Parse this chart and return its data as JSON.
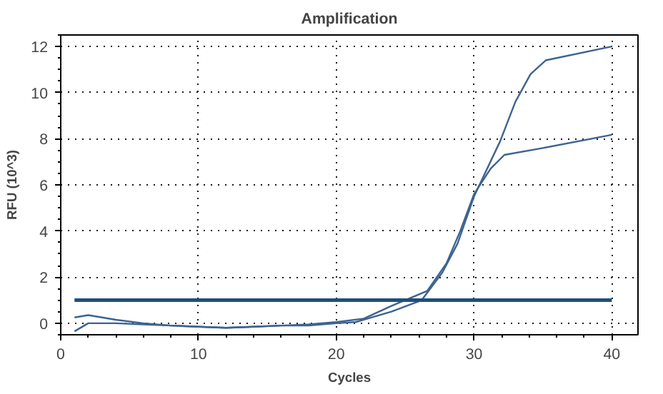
{
  "chart_data": {
    "type": "line",
    "title": "Amplification",
    "xlabel": "Cycles",
    "ylabel": "RFU (10^3)",
    "xlim": [
      0,
      41.9
    ],
    "ylim": [
      -0.5,
      12.5
    ],
    "xticks": [
      0,
      10,
      20,
      30,
      40
    ],
    "yticks": [
      0,
      2,
      4,
      6,
      8,
      10,
      12
    ],
    "grid": true,
    "marker": "none",
    "line_style": "solid",
    "series": [
      {
        "color": "#3d6391",
        "x": [
          1,
          2,
          4,
          6,
          8,
          10,
          12,
          14,
          16,
          18,
          20,
          21.4,
          24,
          26.2,
          27.7,
          28.8,
          30,
          31.9,
          33,
          34.1,
          35.2,
          40
        ],
        "values": [
          -0.35,
          0,
          0,
          -0.05,
          -0.1,
          -0.15,
          -0.2,
          -0.15,
          -0.1,
          -0.1,
          0,
          0.05,
          0.5,
          1.0,
          2.2,
          3.45,
          5.5,
          7.9,
          9.6,
          10.8,
          11.4,
          12.0
        ]
      },
      {
        "color": "#3d6391",
        "x": [
          1,
          2,
          4,
          6,
          8,
          10,
          12,
          14,
          16,
          18,
          20,
          22,
          24,
          26.6,
          28,
          29,
          30,
          31.2,
          32.2,
          35,
          40
        ],
        "values": [
          0.25,
          0.35,
          0.15,
          0,
          -0.1,
          -0.15,
          -0.2,
          -0.15,
          -0.1,
          -0.05,
          0.05,
          0.2,
          0.75,
          1.4,
          2.6,
          4.0,
          5.6,
          6.7,
          7.3,
          7.6,
          8.17
        ]
      },
      {
        "color": "#1f4e7c",
        "x": [
          1,
          40
        ],
        "values": [
          1,
          1
        ]
      }
    ]
  }
}
